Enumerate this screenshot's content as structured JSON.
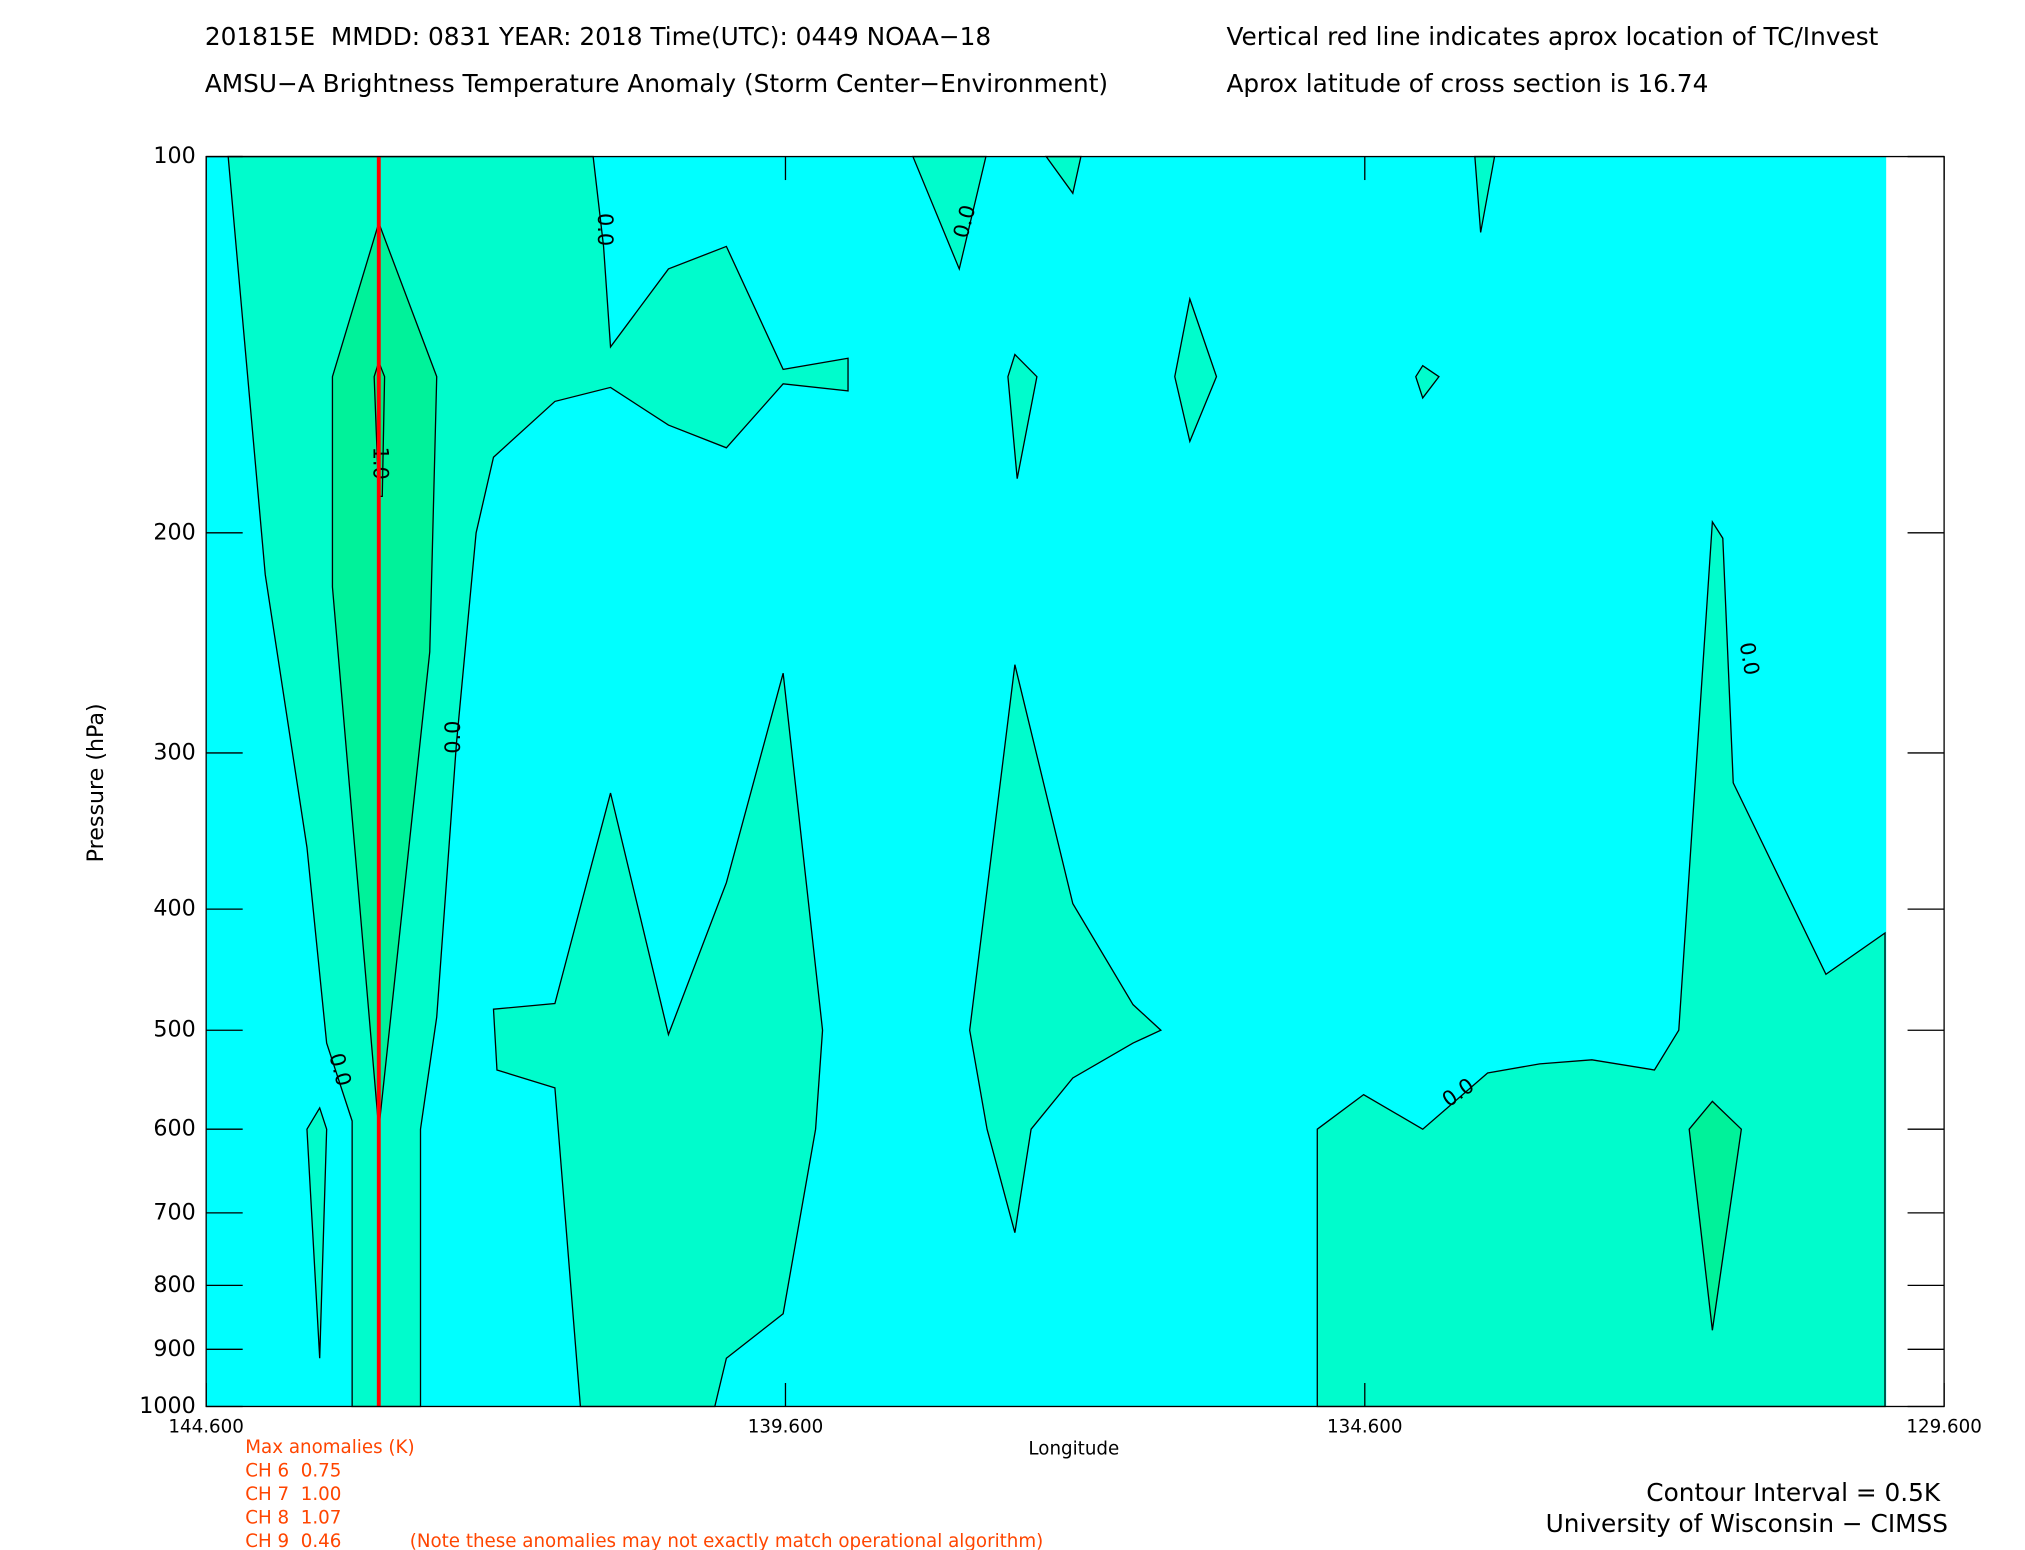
{
  "chart_data": {
    "type": "contour",
    "header": [
      "201815E  MMDD: 0831 YEAR: 2018 Time(UTC): 0449 NOAA−18",
      "AMSU−A Brightness Temperature Anomaly (Storm Center−Environment)"
    ],
    "notes": [
      "Vertical red line indicates aprox location of TC/Invest",
      "Aprox latitude of cross section is 16.74"
    ],
    "x_label": "Longitude",
    "y_label": "Pressure (hPa)",
    "xlim": [
      144.6,
      129.6
    ],
    "xticks": [
      {
        "value": 144.6,
        "label": "144.600"
      },
      {
        "value": 139.6,
        "label": "139.600"
      },
      {
        "value": 134.6,
        "label": "134.600"
      },
      {
        "value": 129.6,
        "label": "129.600"
      }
    ],
    "ylim": [
      1000,
      100
    ],
    "y_log": true,
    "yticks": [
      100,
      200,
      300,
      400,
      500,
      600,
      700,
      800,
      900,
      1000
    ],
    "tc_longitude": 143.11,
    "tc_color": "#ff0000",
    "regions": [
      {
        "color": "#00ffff",
        "points": [
          [
            144.6,
            100
          ],
          [
            130.1,
            100
          ],
          [
            130.1,
            1000
          ],
          [
            144.6,
            1000
          ]
        ]
      },
      {
        "color": "#00fccc",
        "points": [
          [
            144.41,
            100
          ],
          [
            141.26,
            100
          ],
          [
            141.17,
            118
          ],
          [
            141.11,
            142
          ],
          [
            140.61,
            123
          ],
          [
            140.11,
            118
          ],
          [
            139.62,
            148
          ],
          [
            139.06,
            145
          ],
          [
            139.06,
            154
          ],
          [
            139.62,
            152
          ],
          [
            140.11,
            171
          ],
          [
            140.61,
            164
          ],
          [
            141.11,
            153
          ],
          [
            141.59,
            157
          ],
          [
            142.12,
            174
          ],
          [
            142.27,
            200
          ],
          [
            142.44,
            295
          ],
          [
            142.61,
            488
          ],
          [
            142.75,
            600
          ],
          [
            142.75,
            1000
          ],
          [
            143.34,
            1000
          ],
          [
            143.34,
            591
          ],
          [
            143.56,
            512
          ],
          [
            143.73,
            357
          ],
          [
            144.09,
            216
          ]
        ]
      },
      {
        "color": "#00fccc",
        "points": [
          [
            143.73,
            600
          ],
          [
            143.62,
            577
          ],
          [
            143.56,
            600
          ],
          [
            143.62,
            915
          ]
        ]
      },
      {
        "color": "#00f29a",
        "points": [
          [
            143.11,
            113
          ],
          [
            142.61,
            150
          ],
          [
            142.67,
            249
          ],
          [
            143.11,
            600
          ],
          [
            143.51,
            221
          ],
          [
            143.51,
            150
          ]
        ]
      },
      {
        "color": "#00ee80",
        "points": [
          [
            143.15,
            150
          ],
          [
            143.11,
            146
          ],
          [
            143.06,
            150
          ],
          [
            143.08,
            187
          ],
          [
            143.11,
            187
          ]
        ]
      },
      {
        "color": "#00fccc",
        "points": [
          [
            142.12,
            481
          ],
          [
            141.59,
            476
          ],
          [
            141.11,
            323
          ],
          [
            140.61,
            504
          ],
          [
            140.11,
            381
          ],
          [
            139.62,
            259
          ],
          [
            139.28,
            500
          ],
          [
            139.34,
            600
          ],
          [
            139.62,
            843
          ],
          [
            140.11,
            915
          ],
          [
            140.21,
            1000
          ],
          [
            141.37,
            1000
          ],
          [
            141.59,
            556
          ],
          [
            142.09,
            538
          ]
        ]
      },
      {
        "color": "#00fccc",
        "points": [
          [
            137.62,
            255
          ],
          [
            137.12,
            396
          ],
          [
            136.6,
            477
          ],
          [
            136.36,
            500
          ],
          [
            136.6,
            512
          ],
          [
            137.12,
            546
          ],
          [
            137.48,
            600
          ],
          [
            137.62,
            726
          ],
          [
            137.86,
            600
          ],
          [
            138.01,
            500
          ]
        ]
      },
      {
        "color": "#00fccc",
        "points": [
          [
            138.5,
            100
          ],
          [
            137.87,
            100
          ],
          [
            138.1,
            123
          ]
        ]
      },
      {
        "color": "#00fccc",
        "points": [
          [
            137.35,
            100
          ],
          [
            137.05,
            100
          ],
          [
            137.12,
            107
          ]
        ]
      },
      {
        "color": "#00fccc",
        "points": [
          [
            137.62,
            144
          ],
          [
            137.43,
            150
          ],
          [
            137.6,
            181
          ],
          [
            137.68,
            150
          ]
        ]
      },
      {
        "color": "#00fccc",
        "points": [
          [
            136.11,
            130
          ],
          [
            135.88,
            150
          ],
          [
            136.11,
            169
          ],
          [
            136.24,
            150
          ]
        ]
      },
      {
        "color": "#00fccc",
        "points": [
          [
            134.1,
            147
          ],
          [
            133.96,
            150
          ],
          [
            134.1,
            156
          ],
          [
            134.16,
            150
          ]
        ]
      },
      {
        "color": "#00fccc",
        "points": [
          [
            133.65,
            100
          ],
          [
            133.48,
            100
          ],
          [
            133.6,
            115
          ]
        ]
      },
      {
        "color": "#00fccc",
        "points": [
          [
            135.01,
            600
          ],
          [
            134.61,
            563
          ],
          [
            134.1,
            600
          ],
          [
            133.54,
            541
          ],
          [
            133.09,
            532
          ],
          [
            132.64,
            528
          ],
          [
            132.1,
            538
          ],
          [
            131.89,
            500
          ],
          [
            131.6,
            196
          ],
          [
            131.51,
            202
          ],
          [
            131.42,
            317
          ],
          [
            130.62,
            451
          ],
          [
            130.11,
            418
          ],
          [
            130.11,
            1000
          ],
          [
            135.01,
            1000
          ]
        ]
      },
      {
        "color": "#00f29a",
        "points": [
          [
            131.8,
            600
          ],
          [
            131.6,
            570
          ],
          [
            131.35,
            600
          ],
          [
            131.6,
            869
          ]
        ]
      }
    ],
    "contour_labels": [
      "0.0",
      "0.0",
      "0.0",
      "0.0",
      "0.0",
      "0.0",
      "1.0"
    ],
    "anomalies_title": "Max anomalies (K)",
    "anomalies": [
      "CH 6  0.75",
      "CH 7  1.00",
      "CH 8  1.07",
      "CH 9  0.46"
    ],
    "anomalies_note": "(Note these anomalies may not exactly match operational algorithm)",
    "credits": [
      "Contour Interval = 0.5K",
      "University of Wisconsin − CIMSS"
    ]
  }
}
